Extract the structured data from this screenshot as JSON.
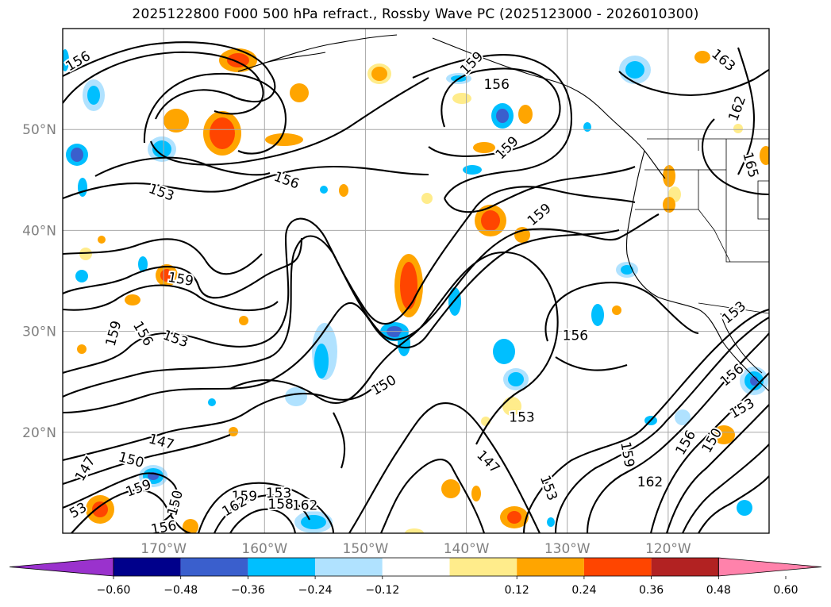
{
  "title": "2025122800 F000 500 hPa refract., Rossby Wave PC (2025123000 - 2026010300)",
  "map": {
    "lon_range": [
      -180,
      -110
    ],
    "lat_range": [
      10,
      60
    ],
    "lat_ticks": [
      {
        "value": 20,
        "label": "20°N"
      },
      {
        "value": 30,
        "label": "30°N"
      },
      {
        "value": 40,
        "label": "40°N"
      },
      {
        "value": 50,
        "label": "50°N"
      }
    ],
    "lon_ticks": [
      {
        "value": -170,
        "label": "170°W"
      },
      {
        "value": -160,
        "label": "160°W"
      },
      {
        "value": -150,
        "label": "150°W"
      },
      {
        "value": -140,
        "label": "140°W"
      },
      {
        "value": -130,
        "label": "130°W"
      },
      {
        "value": -120,
        "label": "120°W"
      }
    ],
    "gridlines": true,
    "tick_label_color": "#808080"
  },
  "contour_labels": [
    {
      "text": "156",
      "lon": -178.5,
      "lat": 56.8,
      "rot": -30
    },
    {
      "text": "159",
      "lon": -139.5,
      "lat": 56.6,
      "rot": -45
    },
    {
      "text": "156",
      "lon": -137.0,
      "lat": 54.5,
      "rot": 0
    },
    {
      "text": "163",
      "lon": -114.5,
      "lat": 56.9,
      "rot": 40
    },
    {
      "text": "162",
      "lon": -113.2,
      "lat": 52.1,
      "rot": -70
    },
    {
      "text": "165",
      "lon": -111.8,
      "lat": 46.5,
      "rot": 75
    },
    {
      "text": "159",
      "lon": -136.0,
      "lat": 48.2,
      "rot": -45
    },
    {
      "text": "153",
      "lon": -170.2,
      "lat": 43.8,
      "rot": 20
    },
    {
      "text": "156",
      "lon": -157.8,
      "lat": 45.0,
      "rot": 20
    },
    {
      "text": "159",
      "lon": -132.8,
      "lat": 41.6,
      "rot": -40
    },
    {
      "text": "159",
      "lon": -168.3,
      "lat": 35.2,
      "rot": 10
    },
    {
      "text": "159",
      "lon": -175.0,
      "lat": 29.8,
      "rot": -75
    },
    {
      "text": "156",
      "lon": -172.0,
      "lat": 29.8,
      "rot": 60
    },
    {
      "text": "153",
      "lon": -168.8,
      "lat": 29.3,
      "rot": 20
    },
    {
      "text": "156",
      "lon": -129.2,
      "lat": 29.6,
      "rot": 0
    },
    {
      "text": "153",
      "lon": -113.5,
      "lat": 31.9,
      "rot": -40
    },
    {
      "text": "156",
      "lon": -113.7,
      "lat": 25.7,
      "rot": -40
    },
    {
      "text": "150",
      "lon": -148.2,
      "lat": 24.7,
      "rot": -30
    },
    {
      "text": "153",
      "lon": -134.5,
      "lat": 21.5,
      "rot": 0
    },
    {
      "text": "153",
      "lon": -112.7,
      "lat": 22.4,
      "rot": -30
    },
    {
      "text": "147",
      "lon": -170.2,
      "lat": 19.1,
      "rot": 15
    },
    {
      "text": "150",
      "lon": -173.2,
      "lat": 17.3,
      "rot": 15
    },
    {
      "text": "147",
      "lon": -177.8,
      "lat": 16.4,
      "rot": -60
    },
    {
      "text": "147",
      "lon": -137.8,
      "lat": 17.1,
      "rot": 45
    },
    {
      "text": "159",
      "lon": -124.0,
      "lat": 17.8,
      "rot": 80
    },
    {
      "text": "156",
      "lon": -118.3,
      "lat": 19.0,
      "rot": -60
    },
    {
      "text": "150",
      "lon": -115.7,
      "lat": 19.2,
      "rot": -60
    },
    {
      "text": "162",
      "lon": -121.8,
      "lat": 15.1,
      "rot": 0
    },
    {
      "text": "153",
      "lon": -131.8,
      "lat": 14.5,
      "rot": 70
    },
    {
      "text": "159",
      "lon": -172.5,
      "lat": 14.5,
      "rot": -20
    },
    {
      "text": "150",
      "lon": -168.9,
      "lat": 13.0,
      "rot": -75
    },
    {
      "text": "159",
      "lon": -162.0,
      "lat": 13.7,
      "rot": 0
    },
    {
      "text": "153",
      "lon": -158.6,
      "lat": 14.0,
      "rot": 0
    },
    {
      "text": "162",
      "lon": -156.0,
      "lat": 12.8,
      "rot": 0
    },
    {
      "text": "158",
      "lon": -158.4,
      "lat": 12.9,
      "rot": 0
    },
    {
      "text": "162",
      "lon": -163.0,
      "lat": 12.7,
      "rot": -30
    },
    {
      "text": "156",
      "lon": -170.0,
      "lat": 10.6,
      "rot": -10
    },
    {
      "text": "53",
      "lon": -178.5,
      "lat": 12.3,
      "rot": -30
    }
  ],
  "colorbar": {
    "ticks": [
      "−0.60",
      "−0.48",
      "−0.36",
      "−0.24",
      "−0.12",
      "0.12",
      "0.24",
      "0.36",
      "0.48",
      "0.60"
    ],
    "colors": [
      "#9a32cd",
      "#00008b",
      "#3a5fcd",
      "#00bfff",
      "#b0e2ff",
      "#ffffff",
      "#ffec8b",
      "#ffa500",
      "#ff4500",
      "#b22222",
      "#ff82ab"
    ]
  }
}
